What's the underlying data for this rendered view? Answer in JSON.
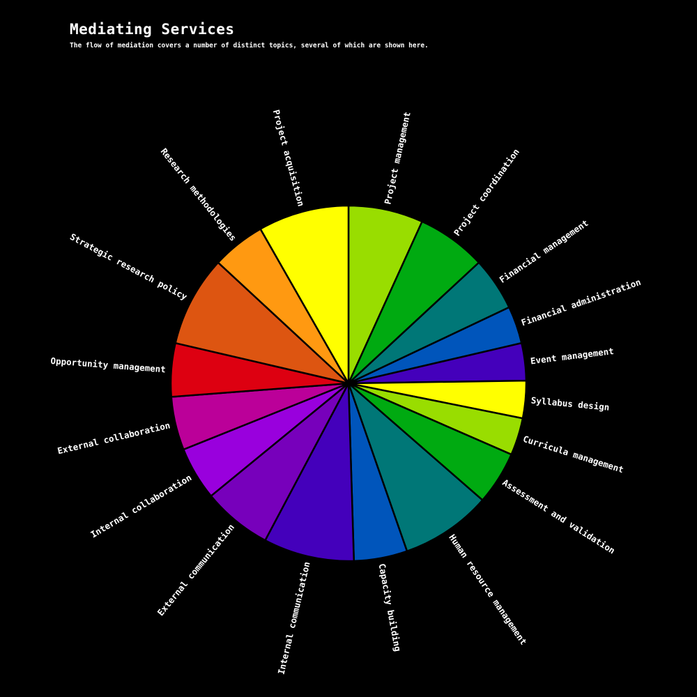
{
  "header": {
    "title": "Mediating Services",
    "subtitle": "The flow of mediation covers a number of distinct topics, several of which are shown here."
  },
  "chart_data": {
    "type": "pie",
    "title": "Mediating Services",
    "subtitle": "The flow of mediation covers a number of distinct topics, several of which are shown here.",
    "direction": "clockwise",
    "slices": [
      {
        "label": "Project management",
        "value": 7.0,
        "color": "#99dd00"
      },
      {
        "label": "Project coordination",
        "value": 6.5,
        "color": "#00aa11"
      },
      {
        "label": "Financial management",
        "value": 5.0,
        "color": "#007777"
      },
      {
        "label": "Financial administration",
        "value": 3.5,
        "color": "#0055bb"
      },
      {
        "label": "Event management",
        "value": 3.5,
        "color": "#4400bb"
      },
      {
        "label": "Syllabus design",
        "value": 3.5,
        "color": "#ffff00"
      },
      {
        "label": "Curricula management",
        "value": 3.5,
        "color": "#99dd00"
      },
      {
        "label": "Assessment and validation",
        "value": 5.0,
        "color": "#00aa11"
      },
      {
        "label": "Human resource management",
        "value": 8.5,
        "color": "#007777"
      },
      {
        "label": "Capacity building",
        "value": 5.0,
        "color": "#0055bb"
      },
      {
        "label": "Internal communication",
        "value": 8.5,
        "color": "#4400bb"
      },
      {
        "label": "External communication",
        "value": 6.5,
        "color": "#7700bb"
      },
      {
        "label": "Internal collaboration",
        "value": 5.0,
        "color": "#9900dd"
      },
      {
        "label": "External collaboration",
        "value": 5.0,
        "color": "#bb0099"
      },
      {
        "label": "Opportunity management",
        "value": 5.0,
        "color": "#dd0011"
      },
      {
        "label": "Strategic research policy",
        "value": 8.5,
        "color": "#dd5511"
      },
      {
        "label": "Research methodologies",
        "value": 5.0,
        "color": "#ff9911"
      },
      {
        "label": "Project acquisition",
        "value": 8.5,
        "color": "#ffff00"
      }
    ]
  }
}
